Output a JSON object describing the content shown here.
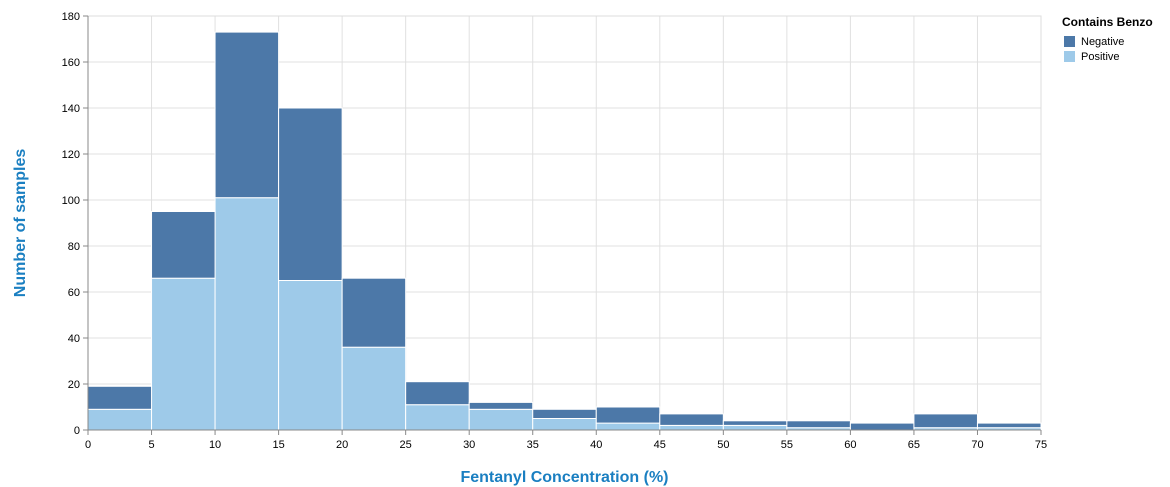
{
  "chart_data": {
    "type": "bar",
    "stacked": true,
    "xlabel": "Fentanyl Concentration (%)",
    "ylabel": "Number of samples",
    "bin_edges": [
      0,
      5,
      10,
      15,
      20,
      25,
      30,
      35,
      40,
      45,
      50,
      55,
      60,
      65,
      70,
      75
    ],
    "xlim": [
      0,
      75
    ],
    "ylim": [
      0,
      180
    ],
    "x_ticks": [
      0,
      5,
      10,
      15,
      20,
      25,
      30,
      35,
      40,
      45,
      50,
      55,
      60,
      65,
      70,
      75
    ],
    "y_ticks": [
      0,
      20,
      40,
      60,
      80,
      100,
      120,
      140,
      160,
      180
    ],
    "grid": true,
    "legend": {
      "title": "Contains Benzo",
      "placement": "top-right"
    },
    "series": [
      {
        "name": "Positive",
        "color": "#9ecae9",
        "values": [
          9,
          66,
          101,
          65,
          36,
          11,
          9,
          5,
          3,
          2,
          2,
          1,
          0,
          1,
          1
        ]
      },
      {
        "name": "Negative",
        "color": "#4c78a8",
        "values": [
          10,
          29,
          72,
          75,
          30,
          10,
          3,
          4,
          7,
          5,
          2,
          3,
          3,
          6,
          2
        ]
      }
    ]
  }
}
